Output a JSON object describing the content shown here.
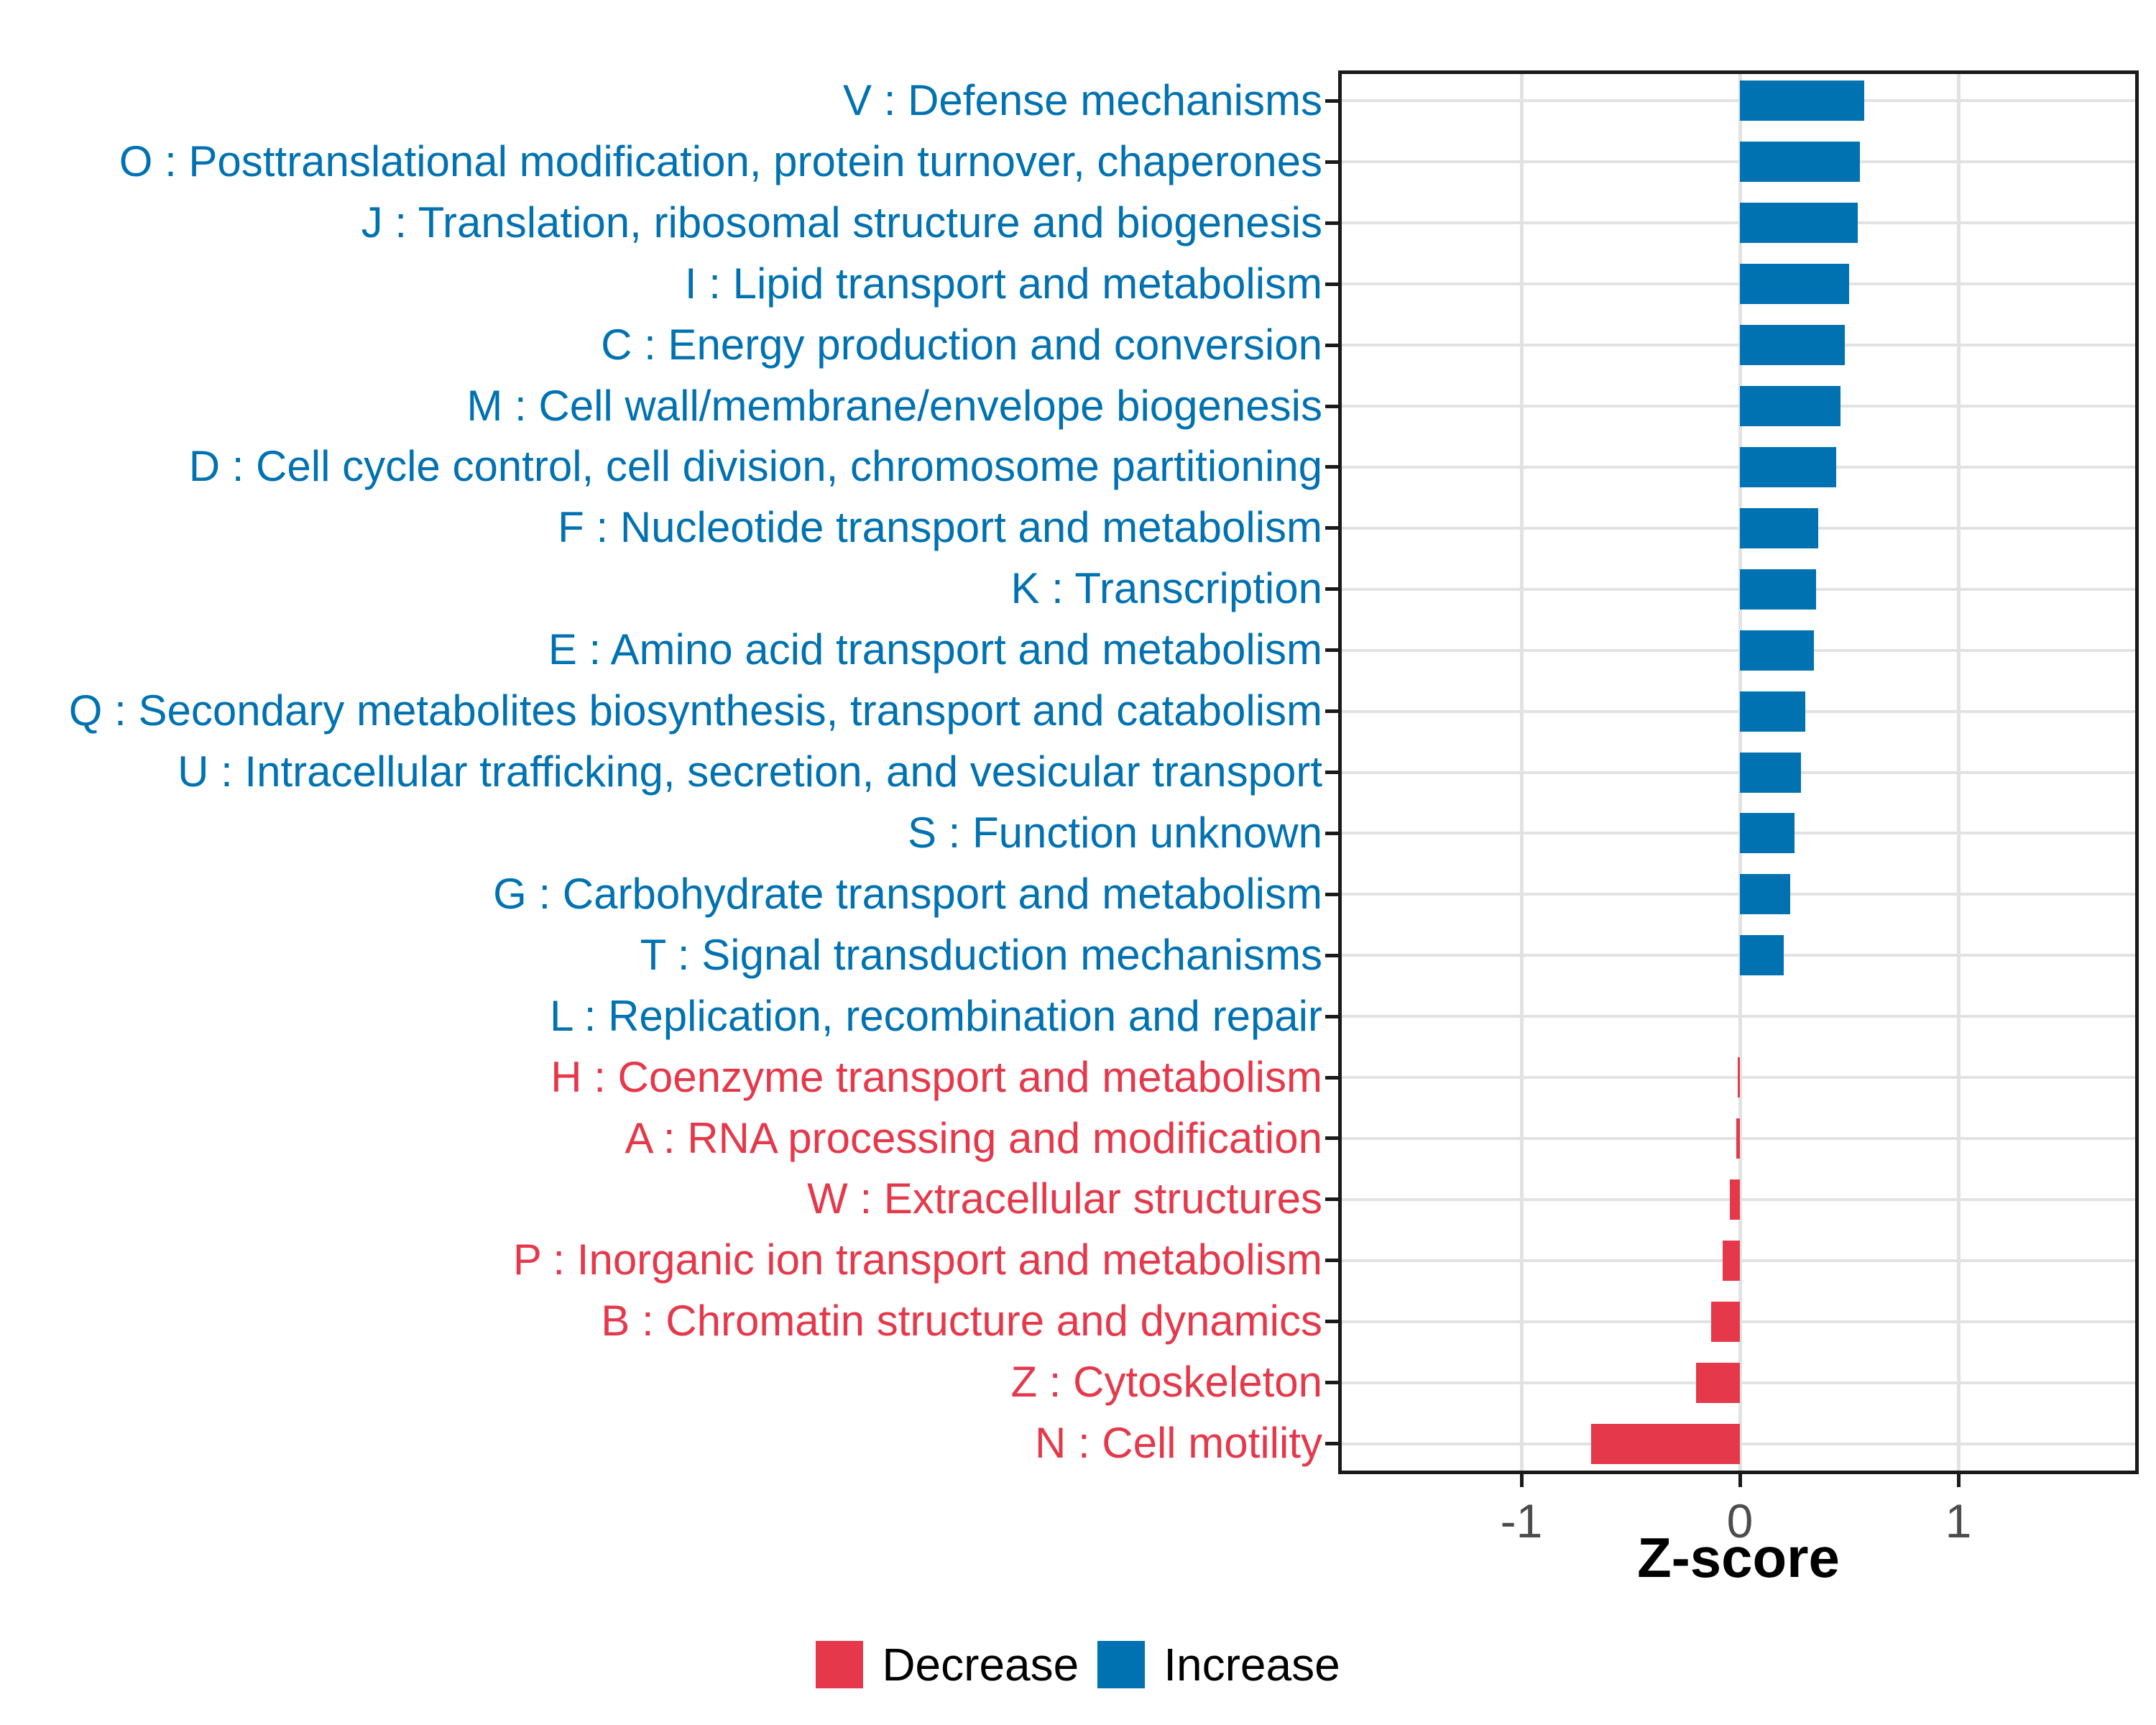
{
  "chart_data": {
    "type": "bar",
    "orientation": "horizontal",
    "title": "",
    "xlabel": "Z-score",
    "ylabel": "",
    "xlim": [
      -1.84,
      1.84
    ],
    "grid": "major-vertical-and-horizontal",
    "x_ticks": [
      {
        "value": -1,
        "label": "-1"
      },
      {
        "value": 0,
        "label": "0"
      },
      {
        "value": 1,
        "label": "1"
      }
    ],
    "colors": {
      "Decrease": "#E5394B",
      "Increase": "#0072B2",
      "gridline": "#E2E2E2",
      "panel_border": "#1A1A1A",
      "tick_label": "#4D4D4D"
    },
    "legend": {
      "position": "bottom-center",
      "items": [
        {
          "label": "Decrease",
          "color": "#E5394B"
        },
        {
          "label": "Increase",
          "color": "#0072B2"
        }
      ]
    },
    "categories": [
      {
        "code": "V",
        "label": "V : Defense mechanisms",
        "value": 0.57,
        "direction": "Increase"
      },
      {
        "code": "O",
        "label": "O : Posttranslational modification, protein turnover, chaperones",
        "value": 0.55,
        "direction": "Increase"
      },
      {
        "code": "J",
        "label": "J : Translation, ribosomal structure and biogenesis",
        "value": 0.54,
        "direction": "Increase"
      },
      {
        "code": "I",
        "label": "I : Lipid transport and metabolism",
        "value": 0.5,
        "direction": "Increase"
      },
      {
        "code": "C",
        "label": "C : Energy production and conversion",
        "value": 0.48,
        "direction": "Increase"
      },
      {
        "code": "M",
        "label": "M : Cell wall/membrane/envelope biogenesis",
        "value": 0.46,
        "direction": "Increase"
      },
      {
        "code": "D",
        "label": "D : Cell cycle control, cell division, chromosome partitioning",
        "value": 0.44,
        "direction": "Increase"
      },
      {
        "code": "F",
        "label": "F : Nucleotide transport and metabolism",
        "value": 0.36,
        "direction": "Increase"
      },
      {
        "code": "K",
        "label": "K : Transcription",
        "value": 0.35,
        "direction": "Increase"
      },
      {
        "code": "E",
        "label": "E : Amino acid transport and metabolism",
        "value": 0.34,
        "direction": "Increase"
      },
      {
        "code": "Q",
        "label": "Q : Secondary metabolites biosynthesis, transport and catabolism",
        "value": 0.3,
        "direction": "Increase"
      },
      {
        "code": "U",
        "label": "U : Intracellular trafficking, secretion, and vesicular transport",
        "value": 0.28,
        "direction": "Increase"
      },
      {
        "code": "S",
        "label": "S : Function unknown",
        "value": 0.25,
        "direction": "Increase"
      },
      {
        "code": "G",
        "label": "G : Carbohydrate transport and metabolism",
        "value": 0.23,
        "direction": "Increase"
      },
      {
        "code": "T",
        "label": "T : Signal transduction mechanisms",
        "value": 0.2,
        "direction": "Increase"
      },
      {
        "code": "L",
        "label": "L : Replication, recombination and repair",
        "value": 0.0,
        "direction": "Increase"
      },
      {
        "code": "H",
        "label": "H : Coenzyme transport and metabolism",
        "value": -0.01,
        "direction": "Decrease"
      },
      {
        "code": "A",
        "label": "A : RNA processing and modification",
        "value": -0.015,
        "direction": "Decrease"
      },
      {
        "code": "W",
        "label": "W : Extracellular structures",
        "value": -0.045,
        "direction": "Decrease"
      },
      {
        "code": "P",
        "label": "P : Inorganic ion transport and metabolism",
        "value": -0.08,
        "direction": "Decrease"
      },
      {
        "code": "B",
        "label": "B : Chromatin structure and dynamics",
        "value": -0.13,
        "direction": "Decrease"
      },
      {
        "code": "Z",
        "label": "Z : Cytoskeleton",
        "value": -0.2,
        "direction": "Decrease"
      },
      {
        "code": "N",
        "label": "N : Cell motility",
        "value": -0.68,
        "direction": "Decrease"
      }
    ]
  }
}
